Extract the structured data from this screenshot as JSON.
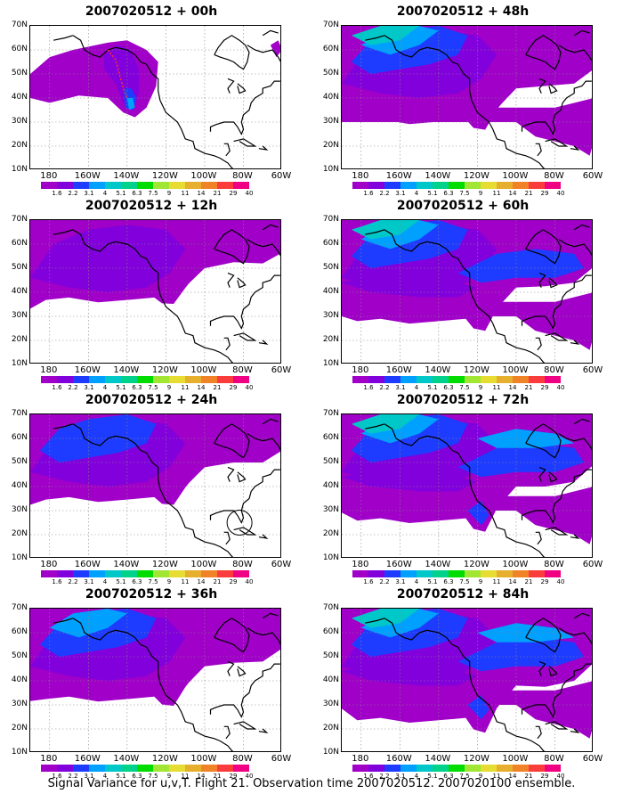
{
  "panels": [
    {
      "title": "2007020512 + 00h",
      "stage": 0
    },
    {
      "title": "2007020512 + 48h",
      "stage": 4
    },
    {
      "title": "2007020512 + 12h",
      "stage": 1
    },
    {
      "title": "2007020512 + 60h",
      "stage": 5
    },
    {
      "title": "2007020512 + 24h",
      "stage": 2
    },
    {
      "title": "2007020512 + 72h",
      "stage": 6
    },
    {
      "title": "2007020512 + 36h",
      "stage": 3
    },
    {
      "title": "2007020512 + 84h",
      "stage": 7
    }
  ],
  "lat_labels": [
    "70N",
    "60N",
    "50N",
    "40N",
    "30N",
    "20N",
    "10N"
  ],
  "lon_labels": [
    "180",
    "160W",
    "140W",
    "120W",
    "100W",
    "80W",
    "60W"
  ],
  "colorbar": {
    "colors": [
      "#a000c8",
      "#8200dc",
      "#1e3cff",
      "#00a0ff",
      "#00c8c8",
      "#00d28c",
      "#00dc00",
      "#a0e632",
      "#e6dc32",
      "#e6af2d",
      "#f08228",
      "#fa3c3c",
      "#f00082"
    ],
    "labels": [
      "1.6",
      "2.2",
      "3.1",
      "4",
      "5.1",
      "6.3",
      "7.5",
      "9",
      "11",
      "14",
      "21",
      "29",
      "40"
    ]
  },
  "footer": "Signal Variance for u,v,T. Flight 21. Observation time 2007020512. 2007020100 ensemble."
}
